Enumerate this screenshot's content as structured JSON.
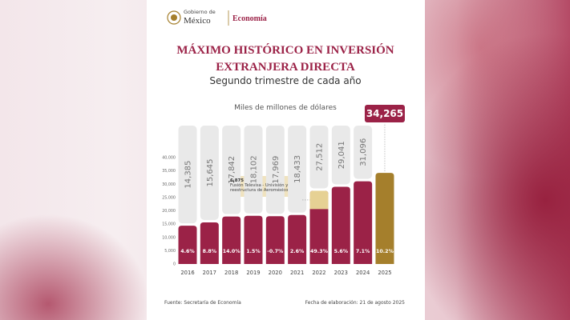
{
  "header": {
    "gov_small": "Gobierno de",
    "gov_big": "México",
    "ministry": "Economía"
  },
  "chart_data": {
    "type": "bar",
    "title": [
      "MÁXIMO HISTÓRICO EN INVERSIÓN",
      "EXTRANJERA DIRECTA"
    ],
    "subtitle": "Segundo trimestre de cada año",
    "ylabel": "Miles de millones de dólares",
    "categories": [
      "2016",
      "2017",
      "2018",
      "2019",
      "2020",
      "2021",
      "2022",
      "2023",
      "2024",
      "2025"
    ],
    "series": [
      {
        "values": [
          14385,
          15645,
          17842,
          18102,
          17969,
          18433,
          27512,
          29041,
          31096,
          34265
        ],
        "value_labels": [
          "14,385",
          "15,645",
          "17,842",
          "18,102",
          "17,969",
          "18,433",
          "27,512",
          "29,041",
          "31,096",
          "34,265"
        ],
        "color": "#9b2247",
        "highlight_color": "#a57f2c"
      }
    ],
    "growth": {
      "values": [
        4.6,
        8.8,
        14.0,
        1.5,
        -0.7,
        2.6,
        49.3,
        5.6,
        7.1,
        10.2
      ],
      "value_labels": [
        "4.6%",
        "8.8%",
        "14.0%",
        "1.5%",
        "-0.7%",
        "2.6%",
        "49.3%",
        "5.6%",
        "7.1%",
        "10.2%"
      ]
    },
    "annotation": {
      "category": "2022",
      "value": 6875,
      "label": "6,875",
      "text": "Fusión Televisa - Univisión y reestructura de Aeroméxico",
      "color": "#e6d194"
    },
    "ylim": [
      0,
      40000
    ],
    "yticks": [
      0,
      {
        "value": 5000,
        "label": "5,000"
      },
      {
        "value": 10000,
        "label": "10,000"
      },
      {
        "value": 15000,
        "label": "15,000"
      },
      {
        "value": 20000,
        "label": "20,000"
      },
      {
        "value": 25000,
        "label": "25,000"
      },
      {
        "value": 30000,
        "label": "30,000"
      },
      {
        "value": 35000,
        "label": "35,000"
      },
      {
        "value": 40000,
        "label": "40,000"
      }
    ],
    "grid": false
  },
  "footer": {
    "source": "Fuente: Secretaría de Economía",
    "date": "Fecha de elaboración: 21 de agosto 2025"
  }
}
